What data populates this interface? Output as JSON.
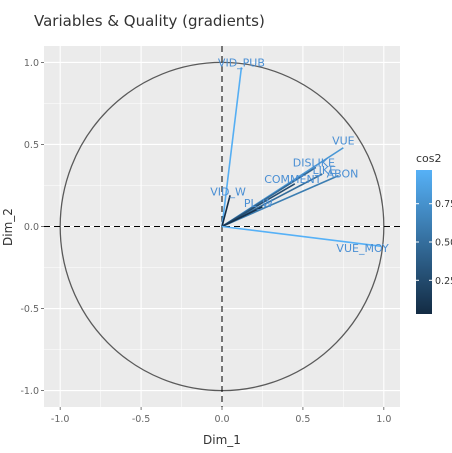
{
  "chart_data": {
    "type": "scatter",
    "title": "Variables & Quality (gradients)",
    "xlabel": "Dim_1",
    "ylabel": "Dim_2",
    "xlim": [
      -1.1,
      1.1
    ],
    "ylim": [
      -1.1,
      1.1
    ],
    "xticks": [
      "-1.0",
      "-0.5",
      "0.0",
      "0.5",
      "1.0"
    ],
    "yticks": [
      "-1.0",
      "-0.5",
      "0.0",
      "0.5",
      "1.0"
    ],
    "grid": true,
    "correlation_circle": true,
    "variables": [
      {
        "name": "VID_PUB",
        "x": 0.12,
        "y": 0.97,
        "cos2": 0.95
      },
      {
        "name": "VUE",
        "x": 0.75,
        "y": 0.48,
        "cos2": 0.79
      },
      {
        "name": "DISLIKE",
        "x": 0.58,
        "y": 0.36,
        "cos2": 0.46
      },
      {
        "name": "LIKE",
        "x": 0.62,
        "y": 0.32,
        "cos2": 0.49
      },
      {
        "name": "ABON",
        "x": 0.72,
        "y": 0.31,
        "cos2": 0.61
      },
      {
        "name": "COMMENT",
        "x": 0.45,
        "y": 0.26,
        "cos2": 0.27
      },
      {
        "name": "VID_W",
        "x": 0.05,
        "y": 0.19,
        "cos2": 0.04
      },
      {
        "name": "PL_W",
        "x": 0.25,
        "y": 0.12,
        "cos2": 0.08
      },
      {
        "name": "VUE_MOY",
        "x": 0.98,
        "y": -0.12,
        "cos2": 0.97
      }
    ],
    "legend": {
      "title": "cos2",
      "ticks": [
        "0.25",
        "0.50",
        "0.75"
      ],
      "range": [
        0.03,
        0.97
      ],
      "low_color": "#132b43",
      "high_color": "#56b1f7",
      "placement": "right"
    },
    "panel_color": "#ebebeb",
    "grid_color": "#ffffff"
  }
}
